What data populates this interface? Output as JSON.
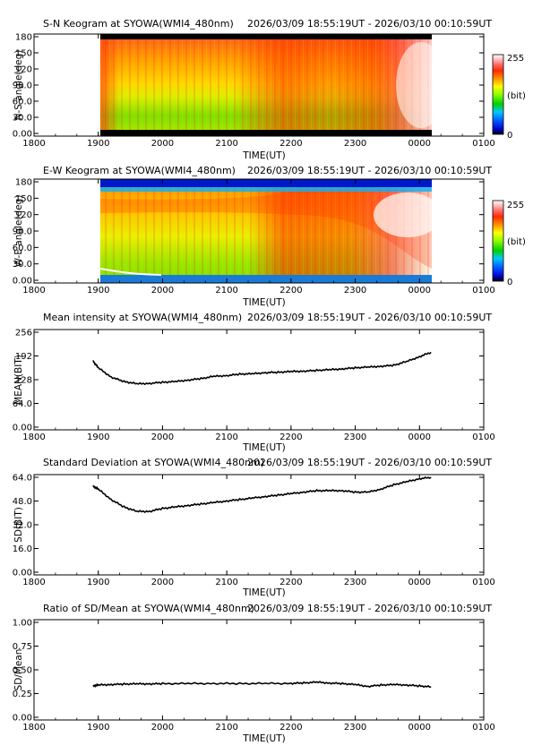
{
  "colors": {
    "line": "#000000",
    "colormap": [
      "#000000",
      "#0000c8",
      "#0050ff",
      "#00c8ff",
      "#00d000",
      "#8cff00",
      "#ffff00",
      "#ff9000",
      "#ff2a00",
      "#ff7070",
      "#ffc8c8",
      "#ffffff"
    ]
  },
  "chart_data": [
    {
      "type": "heatmap",
      "title": "S-N Keogram at SYOWA(WMI4_480nm)",
      "time_range": "2026/03/09 18:55:19UT - 2026/03/10 00:10:59UT",
      "xlabel": "TIME(UT)",
      "ylabel": "N-S angle(deg)",
      "x_ticks": [
        "1800",
        "1900",
        "2000",
        "2100",
        "2200",
        "2300",
        "0000",
        "0100"
      ],
      "y_ticks": [
        "0.00",
        "30.0",
        "60.0",
        "90.0",
        "120",
        "150",
        "180"
      ],
      "ylim": [
        0,
        180
      ],
      "colorbar": {
        "max_label": "255",
        "unit_label": "(bit)",
        "min_label": "0",
        "range": [
          0,
          255
        ]
      }
    },
    {
      "type": "heatmap",
      "title": "E-W Keogram at SYOWA(WMI4_480nm)",
      "time_range": "2026/03/09 18:55:19UT - 2026/03/10 00:10:59UT",
      "xlabel": "TIME(UT)",
      "ylabel": "W-E angle(deg)",
      "x_ticks": [
        "1800",
        "1900",
        "2000",
        "2100",
        "2200",
        "2300",
        "0000",
        "0100"
      ],
      "y_ticks": [
        "0.00",
        "30.0",
        "60.0",
        "90.0",
        "120",
        "150",
        "180"
      ],
      "ylim": [
        0,
        180
      ],
      "colorbar": {
        "max_label": "255",
        "unit_label": "(bit)",
        "min_label": "0",
        "range": [
          0,
          255
        ]
      }
    },
    {
      "type": "line",
      "title": "Mean intensity at SYOWA(WMI4_480nm)",
      "time_range": "2026/03/09 18:55:19UT - 2026/03/10 00:10:59UT",
      "xlabel": "TIME(UT)",
      "ylabel": "MEAN(BIT)",
      "x_ticks": [
        "1800",
        "1900",
        "2000",
        "2100",
        "2200",
        "2300",
        "0000",
        "0100"
      ],
      "y_ticks": [
        "0.00",
        "64.0",
        "128",
        "192",
        "256"
      ],
      "ylim": [
        0,
        256
      ],
      "x": [
        18.92,
        19.0,
        19.2,
        19.4,
        19.6,
        19.8,
        20.0,
        20.2,
        20.4,
        20.6,
        20.8,
        21.0,
        21.2,
        21.4,
        21.6,
        21.8,
        22.0,
        22.2,
        22.4,
        22.6,
        22.8,
        23.0,
        23.2,
        23.4,
        23.6,
        23.8,
        24.0,
        24.18
      ],
      "values": [
        178,
        160,
        135,
        123,
        117,
        118,
        121,
        123,
        127,
        131,
        137,
        139,
        143,
        144,
        147,
        148,
        150,
        151,
        153,
        155,
        157,
        160,
        162,
        164,
        167,
        177,
        190,
        202
      ]
    },
    {
      "type": "line",
      "title": "Standard Deviation at SYOWA(WMI4_480nm)",
      "time_range": "2026/03/09 18:55:19UT - 2026/03/10 00:10:59UT",
      "xlabel": "TIME(UT)",
      "ylabel": "SD(BIT)",
      "x_ticks": [
        "1800",
        "1900",
        "2000",
        "2100",
        "2200",
        "2300",
        "0000",
        "0100"
      ],
      "y_ticks": [
        "0.00",
        "16.0",
        "32.0",
        "48.0",
        "64.0"
      ],
      "ylim": [
        0,
        64
      ],
      "x": [
        18.92,
        19.0,
        19.2,
        19.4,
        19.6,
        19.8,
        20.0,
        20.2,
        20.4,
        20.6,
        20.8,
        21.0,
        21.2,
        21.4,
        21.6,
        21.8,
        22.0,
        22.2,
        22.4,
        22.6,
        22.8,
        23.0,
        23.2,
        23.4,
        23.6,
        23.8,
        24.0,
        24.18
      ],
      "values": [
        58,
        56,
        49,
        44,
        41,
        41,
        43,
        44,
        45,
        46,
        47,
        48,
        49,
        50,
        51,
        52,
        53,
        54,
        55,
        55,
        55,
        54,
        54,
        56,
        59,
        61,
        63,
        64
      ]
    },
    {
      "type": "line",
      "title": "Ratio of SD/Mean at SYOWA(WMI4_480nm)",
      "time_range": "2026/03/09 18:55:19UT - 2026/03/10 00:10:59UT",
      "xlabel": "TIME(UT)",
      "ylabel": "SD/Mean",
      "x_ticks": [
        "1800",
        "1900",
        "2000",
        "2100",
        "2200",
        "2300",
        "0000",
        "0100"
      ],
      "y_ticks": [
        "0.00",
        "0.25",
        "0.50",
        "0.75",
        "1.00"
      ],
      "ylim": [
        0,
        1
      ],
      "x": [
        18.92,
        19.0,
        19.2,
        19.4,
        19.6,
        19.8,
        20.0,
        20.4,
        20.8,
        21.2,
        21.6,
        22.0,
        22.2,
        22.4,
        22.6,
        22.8,
        23.0,
        23.2,
        23.4,
        23.6,
        23.8,
        24.0,
        24.18
      ],
      "values": [
        0.33,
        0.34,
        0.345,
        0.35,
        0.352,
        0.352,
        0.354,
        0.355,
        0.356,
        0.355,
        0.356,
        0.357,
        0.362,
        0.37,
        0.36,
        0.355,
        0.345,
        0.325,
        0.34,
        0.345,
        0.34,
        0.33,
        0.32
      ]
    }
  ]
}
